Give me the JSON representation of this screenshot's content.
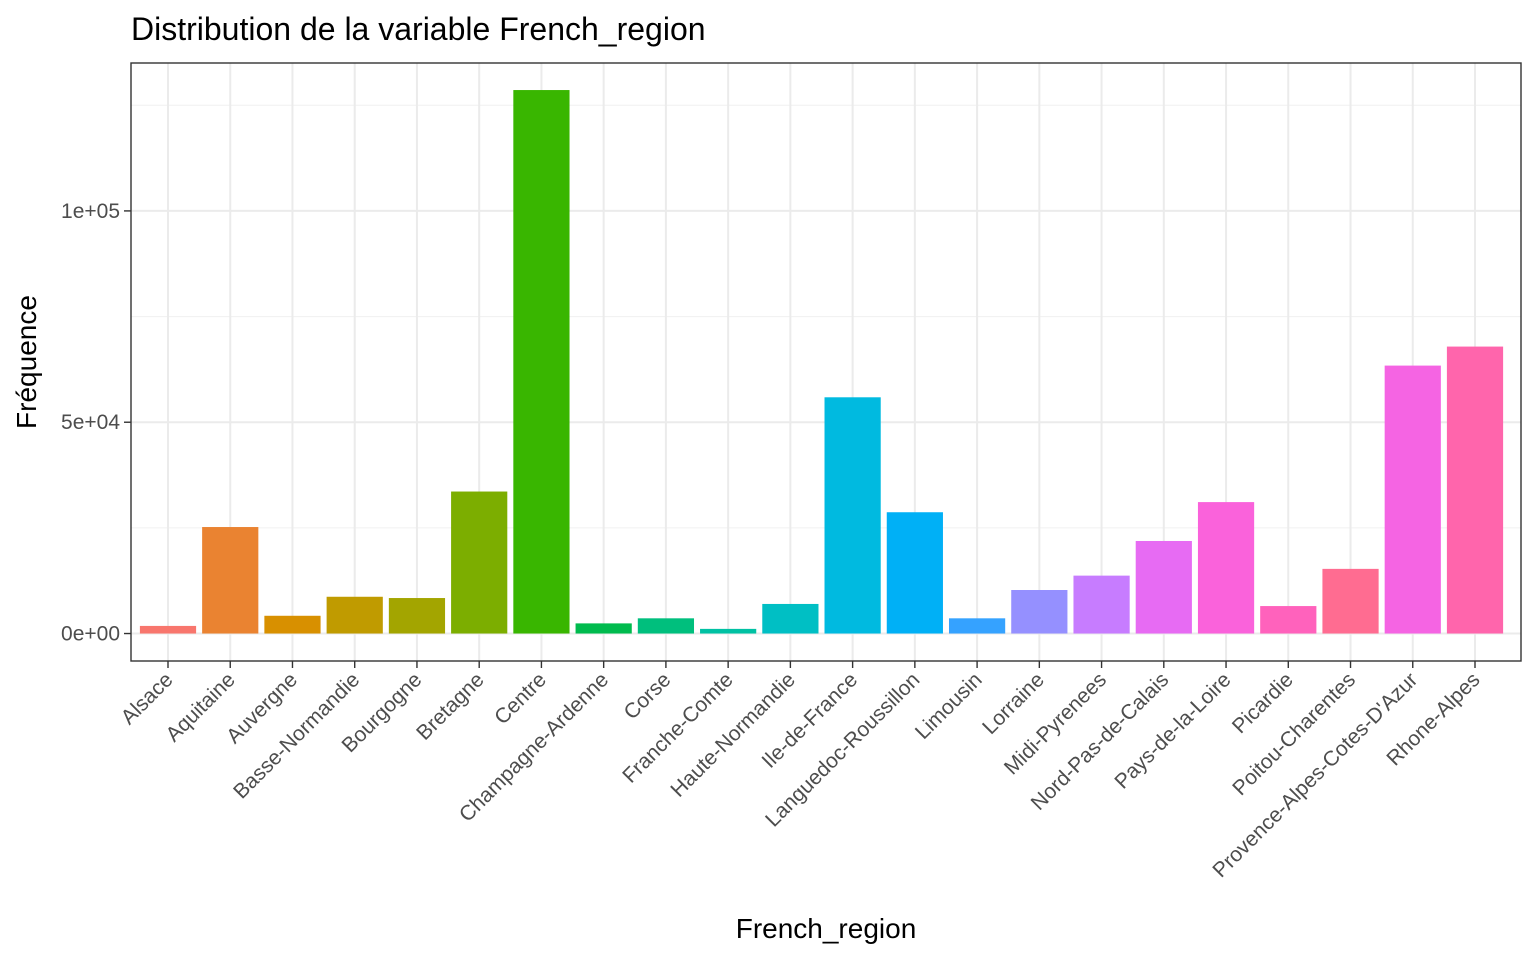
{
  "chart_data": {
    "type": "bar",
    "title": "Distribution de la variable French_region",
    "xlabel": "French_region",
    "ylabel": "Fréquence",
    "categories": [
      "Alsace",
      "Aquitaine",
      "Auvergne",
      "Basse-Normandie",
      "Bourgogne",
      "Bretagne",
      "Centre",
      "Champagne-Ardenne",
      "Corse",
      "Franche-Comte",
      "Haute-Normandie",
      "Ile-de-France",
      "Languedoc-Roussillon",
      "Limousin",
      "Lorraine",
      "Midi-Pyrenees",
      "Nord-Pas-de-Calais",
      "Pays-de-la-Loire",
      "Picardie",
      "Poitou-Charentes",
      "Provence-Alpes-Cotes-D'Azur",
      "Rhone-Alpes"
    ],
    "values": [
      1800,
      25200,
      4200,
      8700,
      8400,
      33600,
      128600,
      2400,
      3600,
      1100,
      7000,
      55900,
      28700,
      3600,
      10300,
      13700,
      21900,
      31100,
      6500,
      15300,
      63400,
      67900
    ],
    "colors": [
      "#F8766D",
      "#EA8331",
      "#D89000",
      "#C09B00",
      "#A3A500",
      "#7CAE00",
      "#39B600",
      "#00BB4E",
      "#00BF7D",
      "#00C1A3",
      "#00BFC4",
      "#00BAE0",
      "#00B0F6",
      "#35A2FF",
      "#9590FF",
      "#C77CFF",
      "#E76BF3",
      "#FA62DB",
      "#FF62BC",
      "#FF6C91",
      "#F564E3",
      "#FF65AC"
    ],
    "y_ticks": [
      {
        "value": 0,
        "label": "0e+00"
      },
      {
        "value": 50000,
        "label": "5e+04"
      },
      {
        "value": 100000,
        "label": "1e+05"
      }
    ],
    "ylim": [
      -6500,
      135000
    ],
    "grid": true,
    "legend": "none"
  }
}
